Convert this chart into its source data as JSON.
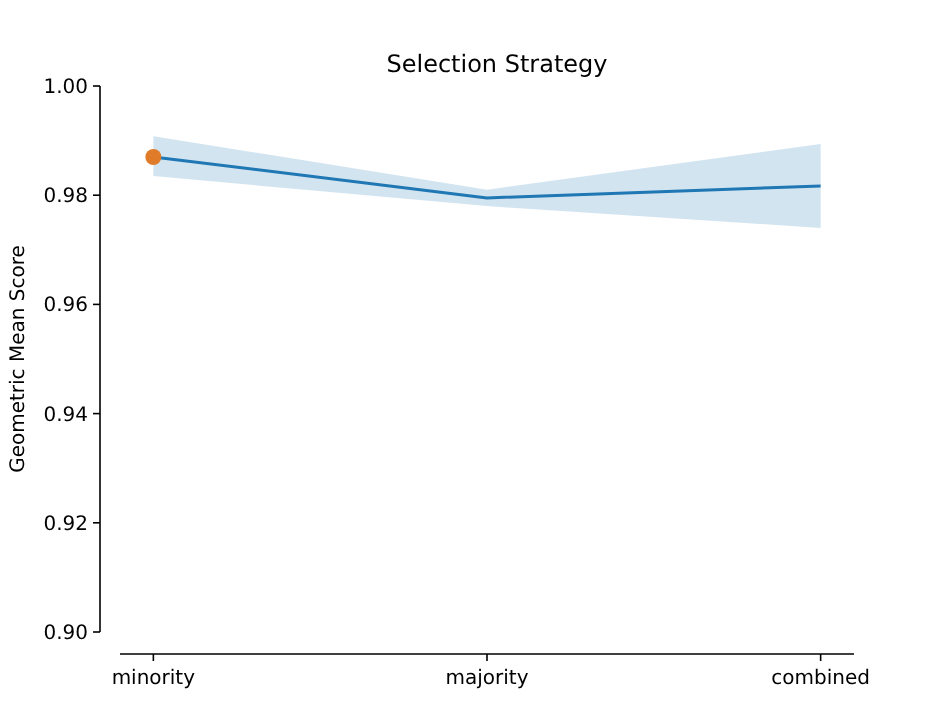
{
  "chart_data": {
    "type": "line",
    "title": "Selection Strategy",
    "ylabel": "Geometric Mean Score",
    "categories": [
      "minority",
      "majority",
      "combined"
    ],
    "series": [
      {
        "color": "#1f77b4",
        "values": [
          0.987,
          0.9795,
          0.9817
        ],
        "lower": [
          0.9835,
          0.978,
          0.974
        ],
        "upper": [
          0.9908,
          0.981,
          0.9894
        ]
      },
      {
        "type": "scatter",
        "color": "#e07b2a",
        "x": [
          "minority"
        ],
        "values": [
          0.987
        ],
        "marker": "circle"
      }
    ],
    "ylim": [
      0.9,
      1.0
    ],
    "yticks": [
      {
        "value": 0.9,
        "label": "0.90"
      },
      {
        "value": 0.92,
        "label": "0.92"
      },
      {
        "value": 0.94,
        "label": "0.94"
      },
      {
        "value": 0.96,
        "label": "0.96"
      },
      {
        "value": 0.98,
        "label": "0.98"
      },
      {
        "value": 1.0,
        "label": "1.00"
      }
    ],
    "grid": false
  }
}
